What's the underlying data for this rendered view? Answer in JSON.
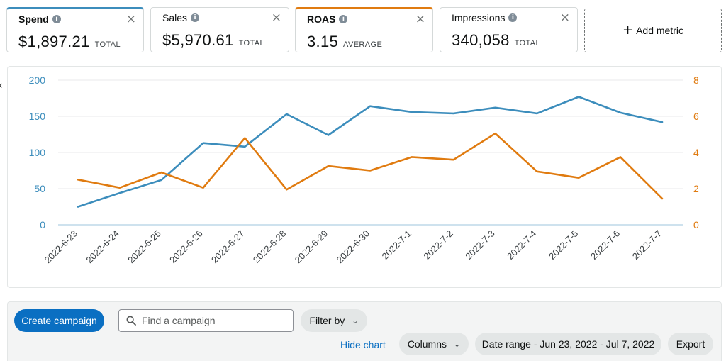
{
  "metrics": [
    {
      "name": "Spend",
      "value": "$1,897.21",
      "unit": "TOTAL",
      "color": "#3c8dbc"
    },
    {
      "name": "Sales",
      "value": "$5,970.61",
      "unit": "TOTAL"
    },
    {
      "name": "ROAS",
      "value": "3.15",
      "unit": "AVERAGE",
      "color": "#e07b10"
    },
    {
      "name": "Impressions",
      "value": "340,058",
      "unit": "TOTAL"
    }
  ],
  "info_icon": "i",
  "close_icon": "×",
  "add_metric": {
    "icon": "+",
    "label": "Add metric"
  },
  "chart_data": {
    "type": "line",
    "categories": [
      "2022-6-23",
      "2022-6-24",
      "2022-6-25",
      "2022-6-26",
      "2022-6-27",
      "2022-6-28",
      "2022-6-29",
      "2022-6-30",
      "2022-7-1",
      "2022-7-2",
      "2022-7-3",
      "2022-7-4",
      "2022-7-5",
      "2022-7-6",
      "2022-7-7"
    ],
    "series": [
      {
        "name": "Spend",
        "axis": "left",
        "color": "#3c8dbc",
        "values": [
          25,
          44,
          62,
          113,
          108,
          153,
          124,
          164,
          156,
          154,
          162,
          154,
          177,
          155,
          142
        ]
      },
      {
        "name": "ROAS",
        "axis": "right",
        "color": "#e07b10",
        "values": [
          2.5,
          2.05,
          2.9,
          2.05,
          4.8,
          1.95,
          3.25,
          3.0,
          3.75,
          3.6,
          5.05,
          2.95,
          2.6,
          3.75,
          1.45
        ]
      }
    ],
    "yleft": {
      "ticks": [
        "0",
        "50",
        "100",
        "150",
        "200"
      ],
      "range": [
        0,
        200
      ],
      "color": "#3c8dbc"
    },
    "yright": {
      "ticks": [
        "0",
        "2",
        "4",
        "6",
        "8"
      ],
      "range": [
        0,
        8
      ],
      "color": "#e07b10"
    },
    "grid": true
  },
  "toolbar": {
    "create_label": "Create campaign",
    "search_placeholder": "Find a campaign",
    "filter_label": "Filter by",
    "hide_chart_label": "Hide chart",
    "columns_label": "Columns",
    "date_range_label": "Date range - Jun 23, 2022 - Jul 7, 2022",
    "export_label": "Export"
  }
}
